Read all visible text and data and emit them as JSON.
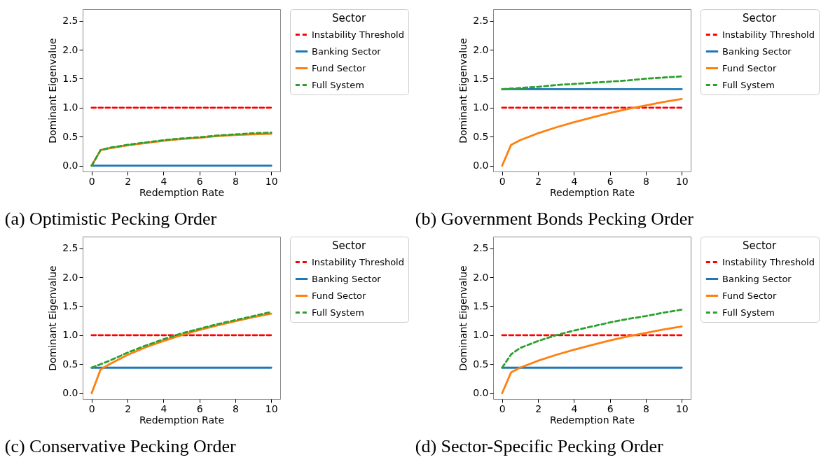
{
  "chart_data": [
    {
      "type": "line",
      "title": "(a) Optimistic Pecking Order",
      "xlabel": "Redemption Rate",
      "ylabel": "Dominant Eigenvalue",
      "legend_title": "Sector",
      "legend": "right",
      "grid": false,
      "xlim": [
        -0.5,
        10.5
      ],
      "xticks": [
        0,
        2,
        4,
        6,
        8,
        10
      ],
      "ylim": [
        -0.1,
        2.7
      ],
      "yticks": [
        {
          "value": 0,
          "label": "0.0"
        },
        0.5,
        {
          "value": 1,
          "label": "1.0"
        },
        1.5,
        {
          "value": 2,
          "label": "2.0"
        },
        2.5
      ],
      "x": [
        0,
        0.5,
        1,
        2,
        3,
        4,
        5,
        6,
        7,
        8,
        9,
        10
      ],
      "series": [
        {
          "name": "Instability Threshold",
          "color": "#ff0000",
          "line_style": "dashed",
          "values": [
            1,
            1,
            1,
            1,
            1,
            1,
            1,
            1,
            1,
            1,
            1,
            1
          ]
        },
        {
          "name": "Banking Sector",
          "color": "#1f77b4",
          "line_style": "solid",
          "values": [
            0,
            0,
            0,
            0,
            0,
            0,
            0,
            0,
            0,
            0,
            0,
            0
          ]
        },
        {
          "name": "Fund Sector",
          "color": "#ff7f0e",
          "line_style": "solid",
          "values": [
            0,
            0.27,
            0.3,
            0.35,
            0.39,
            0.43,
            0.46,
            0.48,
            0.51,
            0.53,
            0.54,
            0.55
          ]
        },
        {
          "name": "Full System",
          "color": "#2ca02c",
          "line_style": "dashed",
          "values": [
            0,
            0.27,
            0.31,
            0.36,
            0.4,
            0.44,
            0.47,
            0.49,
            0.52,
            0.54,
            0.56,
            0.57
          ]
        }
      ]
    },
    {
      "type": "line",
      "title": "(b) Government Bonds Pecking Order",
      "xlabel": "Redemption Rate",
      "ylabel": "Dominant Eigenvalue",
      "legend_title": "Sector",
      "legend": "right",
      "grid": false,
      "xlim": [
        -0.5,
        10.5
      ],
      "xticks": [
        0,
        2,
        4,
        6,
        8,
        10
      ],
      "ylim": [
        -0.1,
        2.7
      ],
      "yticks": [
        {
          "value": 0,
          "label": "0.0"
        },
        0.5,
        {
          "value": 1,
          "label": "1.0"
        },
        1.5,
        {
          "value": 2,
          "label": "2.0"
        },
        2.5
      ],
      "x": [
        0,
        0.5,
        1,
        2,
        3,
        4,
        5,
        6,
        7,
        8,
        9,
        10
      ],
      "series": [
        {
          "name": "Instability Threshold",
          "color": "#ff0000",
          "line_style": "dashed",
          "values": [
            1,
            1,
            1,
            1,
            1,
            1,
            1,
            1,
            1,
            1,
            1,
            1
          ]
        },
        {
          "name": "Banking Sector",
          "color": "#1f77b4",
          "line_style": "solid",
          "values": [
            1.32,
            1.32,
            1.32,
            1.32,
            1.32,
            1.32,
            1.32,
            1.32,
            1.32,
            1.32,
            1.32,
            1.32
          ]
        },
        {
          "name": "Fund Sector",
          "color": "#ff7f0e",
          "line_style": "solid",
          "values": [
            0,
            0.36,
            0.44,
            0.56,
            0.66,
            0.75,
            0.83,
            0.91,
            0.98,
            1.04,
            1.1,
            1.15
          ]
        },
        {
          "name": "Full System",
          "color": "#2ca02c",
          "line_style": "dashed",
          "values": [
            1.32,
            1.33,
            1.34,
            1.36,
            1.39,
            1.41,
            1.43,
            1.45,
            1.47,
            1.5,
            1.52,
            1.54
          ]
        }
      ]
    },
    {
      "type": "line",
      "title": "(c) Conservative Pecking Order",
      "xlabel": "Redemption Rate",
      "ylabel": "Dominant Eigenvalue",
      "legend_title": "Sector",
      "legend": "right",
      "grid": false,
      "xlim": [
        -0.5,
        10.5
      ],
      "xticks": [
        0,
        2,
        4,
        6,
        8,
        10
      ],
      "ylim": [
        -0.1,
        2.7
      ],
      "yticks": [
        {
          "value": 0,
          "label": "0.0"
        },
        0.5,
        {
          "value": 1,
          "label": "1.0"
        },
        1.5,
        {
          "value": 2,
          "label": "2.0"
        },
        2.5
      ],
      "x": [
        0,
        0.5,
        1,
        2,
        3,
        4,
        5,
        6,
        7,
        8,
        9,
        10
      ],
      "series": [
        {
          "name": "Instability Threshold",
          "color": "#ff0000",
          "line_style": "dashed",
          "values": [
            1,
            1,
            1,
            1,
            1,
            1,
            1,
            1,
            1,
            1,
            1,
            1
          ]
        },
        {
          "name": "Banking Sector",
          "color": "#1f77b4",
          "line_style": "solid",
          "values": [
            0.44,
            0.44,
            0.44,
            0.44,
            0.44,
            0.44,
            0.44,
            0.44,
            0.44,
            0.44,
            0.44,
            0.44
          ]
        },
        {
          "name": "Fund Sector",
          "color": "#ff7f0e",
          "line_style": "solid",
          "values": [
            0,
            0.41,
            0.5,
            0.66,
            0.79,
            0.9,
            1.0,
            1.09,
            1.17,
            1.24,
            1.31,
            1.37
          ]
        },
        {
          "name": "Full System",
          "color": "#2ca02c",
          "line_style": "dashed",
          "values": [
            0.44,
            0.5,
            0.56,
            0.7,
            0.82,
            0.93,
            1.03,
            1.11,
            1.19,
            1.26,
            1.33,
            1.4
          ]
        }
      ]
    },
    {
      "type": "line",
      "title": "(d) Sector-Specific Pecking Order",
      "xlabel": "Redemption Rate",
      "ylabel": "Dominant Eigenvalue",
      "legend_title": "Sector",
      "legend": "right",
      "grid": false,
      "xlim": [
        -0.5,
        10.5
      ],
      "xticks": [
        0,
        2,
        4,
        6,
        8,
        10
      ],
      "ylim": [
        -0.1,
        2.7
      ],
      "yticks": [
        {
          "value": 0,
          "label": "0.0"
        },
        0.5,
        {
          "value": 1,
          "label": "1.0"
        },
        1.5,
        {
          "value": 2,
          "label": "2.0"
        },
        2.5
      ],
      "x": [
        0,
        0.5,
        1,
        2,
        3,
        4,
        5,
        6,
        7,
        8,
        9,
        10
      ],
      "series": [
        {
          "name": "Instability Threshold",
          "color": "#ff0000",
          "line_style": "dashed",
          "values": [
            1,
            1,
            1,
            1,
            1,
            1,
            1,
            1,
            1,
            1,
            1,
            1
          ]
        },
        {
          "name": "Banking Sector",
          "color": "#1f77b4",
          "line_style": "solid",
          "values": [
            0.44,
            0.44,
            0.44,
            0.44,
            0.44,
            0.44,
            0.44,
            0.44,
            0.44,
            0.44,
            0.44,
            0.44
          ]
        },
        {
          "name": "Fund Sector",
          "color": "#ff7f0e",
          "line_style": "solid",
          "values": [
            0,
            0.36,
            0.44,
            0.56,
            0.66,
            0.75,
            0.83,
            0.91,
            0.98,
            1.04,
            1.1,
            1.15
          ]
        },
        {
          "name": "Full System",
          "color": "#2ca02c",
          "line_style": "dashed",
          "values": [
            0.44,
            0.67,
            0.78,
            0.9,
            1.0,
            1.08,
            1.15,
            1.22,
            1.28,
            1.33,
            1.39,
            1.44
          ]
        }
      ]
    }
  ]
}
